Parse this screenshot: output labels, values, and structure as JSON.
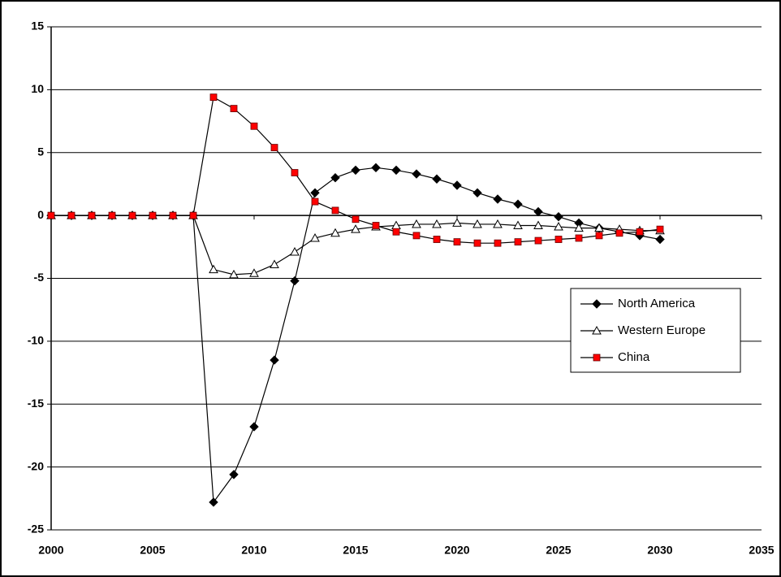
{
  "chart_data": {
    "type": "line",
    "x": [
      2000,
      2001,
      2002,
      2003,
      2004,
      2005,
      2006,
      2007,
      2008,
      2009,
      2010,
      2011,
      2012,
      2013,
      2014,
      2015,
      2016,
      2017,
      2018,
      2019,
      2020,
      2021,
      2022,
      2023,
      2024,
      2025,
      2026,
      2027,
      2028,
      2029,
      2030
    ],
    "series": [
      {
        "name": "North America",
        "color": "#000000",
        "marker": "diamond",
        "values": [
          0,
          0,
          0,
          0,
          0,
          0,
          0,
          0,
          -22.8,
          -20.6,
          -16.8,
          -11.5,
          -5.2,
          1.8,
          3.0,
          3.6,
          3.8,
          3.6,
          3.3,
          2.9,
          2.4,
          1.8,
          1.3,
          0.9,
          0.3,
          -0.1,
          -0.6,
          -1.0,
          -1.3,
          -1.6,
          -1.9
        ]
      },
      {
        "name": "Western Europe",
        "color": "#ffffff",
        "marker": "triangle",
        "values": [
          0,
          0,
          0,
          0,
          0,
          0,
          0,
          0,
          -4.3,
          -4.7,
          -4.6,
          -3.9,
          -2.9,
          -1.8,
          -1.4,
          -1.1,
          -0.9,
          -0.8,
          -0.7,
          -0.7,
          -0.6,
          -0.7,
          -0.7,
          -0.8,
          -0.8,
          -0.9,
          -1.0,
          -1.0,
          -1.1,
          -1.2,
          -1.2
        ]
      },
      {
        "name": "China",
        "color": "#ff0000",
        "marker": "square",
        "values": [
          0,
          0,
          0,
          0,
          0,
          0,
          0,
          0,
          9.4,
          8.5,
          7.1,
          5.4,
          3.4,
          1.1,
          0.4,
          -0.3,
          -0.8,
          -1.3,
          -1.6,
          -1.9,
          -2.1,
          -2.2,
          -2.2,
          -2.1,
          -2.0,
          -1.9,
          -1.8,
          -1.6,
          -1.4,
          -1.3,
          -1.1
        ]
      }
    ],
    "xlim": [
      2000,
      2035
    ],
    "xticks": [
      2000,
      2005,
      2010,
      2015,
      2020,
      2025,
      2030,
      2035
    ],
    "ylim": [
      -25,
      15
    ],
    "yticks": [
      -25,
      -20,
      -15,
      -10,
      -5,
      0,
      5,
      10,
      15
    ],
    "grid": true,
    "legend": "right"
  }
}
